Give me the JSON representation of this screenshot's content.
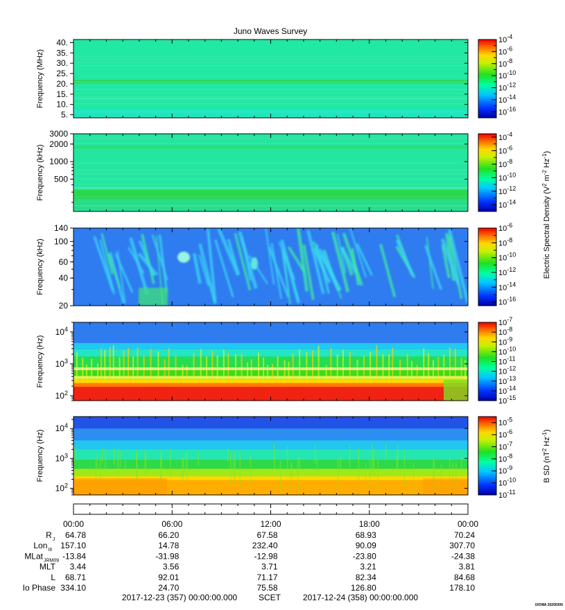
{
  "title": "Juno Waves Survey",
  "watermark": "UIOWA 20200306",
  "chart_data": [
    {
      "type": "heatmap",
      "ylabel": "Frequency (MHz)",
      "yscale": "linear",
      "ylim": [
        3.5,
        41.5
      ],
      "yticks": [
        {
          "v": 40,
          "label": "40."
        },
        {
          "v": 35,
          "label": "35."
        },
        {
          "v": 30,
          "label": "30."
        },
        {
          "v": 25,
          "label": "25."
        },
        {
          "v": 20,
          "label": "20."
        },
        {
          "v": 15,
          "label": "15."
        },
        {
          "v": 10,
          "label": "10."
        },
        {
          "v": 5,
          "label": "5."
        }
      ],
      "colorbar": {
        "min_exp": -17,
        "max_exp": -4,
        "ticks": [
          -4,
          -6,
          -8,
          -10,
          -12,
          -14,
          -16
        ]
      },
      "bands": [
        {
          "from": 3.5,
          "to": 41.5,
          "color": "#21e8a2"
        },
        {
          "from": 3.5,
          "to": 8,
          "color": "#1fe6bd"
        },
        {
          "from": 20.3,
          "to": 22.0,
          "color": "#2ad860"
        }
      ]
    },
    {
      "type": "heatmap",
      "ylabel": "Frequency (kHz)",
      "yscale": "log",
      "ylim": [
        140,
        3000
      ],
      "yticks": [
        {
          "v": 3000,
          "label": "3000"
        },
        {
          "v": 2000,
          "label": "2000"
        },
        {
          "v": 1000,
          "label": "1000"
        },
        {
          "v": 500,
          "label": "500"
        }
      ],
      "colorbar": {
        "min_exp": -15,
        "max_exp": -3.5,
        "ticks": [
          -4,
          -6,
          -8,
          -10,
          -12,
          -14
        ]
      },
      "bands": [
        {
          "from": 140,
          "to": 3000,
          "color": "#24e6a0"
        },
        {
          "from": 1700,
          "to": 1900,
          "color": "#2adf78"
        },
        {
          "from": 230,
          "to": 330,
          "color": "#2ad850"
        },
        {
          "from": 150,
          "to": 230,
          "color": "#28dc8a"
        }
      ]
    },
    {
      "type": "heatmap",
      "ylabel": "Frequency (kHz)",
      "yscale": "log",
      "ylim": [
        20,
        140
      ],
      "yticks": [
        {
          "v": 140,
          "label": "140"
        },
        {
          "v": 100,
          "label": "100"
        },
        {
          "v": 60,
          "label": "60"
        },
        {
          "v": 40,
          "label": "40"
        },
        {
          "v": 20,
          "label": "20"
        }
      ],
      "colorbar": {
        "min_exp": -16.5,
        "max_exp": -6,
        "ticks": [
          -6,
          -8,
          -10,
          -12,
          -14,
          -16
        ]
      },
      "bands": [
        {
          "from": 20,
          "to": 140,
          "color": "#2f7bf0"
        }
      ]
    },
    {
      "type": "heatmap",
      "ylabel": "Frequency (Hz)",
      "yscale": "log",
      "ylim": [
        70,
        20000
      ],
      "yticks": [
        {
          "v": 10000,
          "label": "10",
          "exp": "4"
        },
        {
          "v": 1000,
          "label": "10",
          "exp": "3"
        },
        {
          "v": 100,
          "label": "10",
          "exp": "2"
        }
      ],
      "colorbar": {
        "min_exp": -15,
        "max_exp": -7,
        "ticks": [
          -7,
          -8,
          -9,
          -10,
          -11,
          -12,
          -13,
          -14,
          -15
        ]
      },
      "bands": [
        {
          "from": 4500,
          "to": 20000,
          "color": "#2f7bf0"
        },
        {
          "from": 2800,
          "to": 4500,
          "color": "#22c8ef"
        },
        {
          "from": 1700,
          "to": 2800,
          "color": "#23e6c5"
        },
        {
          "from": 800,
          "to": 1700,
          "color": "#25dd55"
        },
        {
          "from": 420,
          "to": 800,
          "color": "#3bdc1c"
        },
        {
          "from": 330,
          "to": 420,
          "color": "#b6ee14"
        },
        {
          "from": 250,
          "to": 330,
          "color": "#ffd800"
        },
        {
          "from": 190,
          "to": 250,
          "color": "#ff7a00"
        },
        {
          "from": 70,
          "to": 190,
          "color": "#f22212"
        }
      ]
    },
    {
      "type": "heatmap",
      "ylabel": "Frequency (Hz)",
      "yscale": "log",
      "ylim": [
        60,
        25000
      ],
      "yticks": [
        {
          "v": 10000,
          "label": "10",
          "exp": "4"
        },
        {
          "v": 1000,
          "label": "10",
          "exp": "3"
        },
        {
          "v": 100,
          "label": "10",
          "exp": "2"
        }
      ],
      "colorbar": {
        "min_exp": -11,
        "max_exp": -4.5,
        "ticks": [
          -5,
          -6,
          -7,
          -8,
          -9,
          -10,
          -11
        ]
      },
      "bands": [
        {
          "from": 10000,
          "to": 25000,
          "color": "#2352e6"
        },
        {
          "from": 4000,
          "to": 10000,
          "color": "#2c8ef0"
        },
        {
          "from": 2000,
          "to": 4000,
          "color": "#22c6ee"
        },
        {
          "from": 900,
          "to": 2000,
          "color": "#25e6b0"
        },
        {
          "from": 450,
          "to": 900,
          "color": "#2ed94a"
        },
        {
          "from": 250,
          "to": 450,
          "color": "#9fe81a"
        },
        {
          "from": 190,
          "to": 250,
          "color": "#ffd800"
        },
        {
          "from": 60,
          "to": 190,
          "color": "#ffae00"
        }
      ]
    }
  ],
  "colorbar_labels": {
    "electric": "Electric Spectral Density (V",
    "electric_tail": " m",
    "electric_unit": "Hz",
    "magnetic": "B SD (nT",
    "magnetic_unit": "Hz"
  },
  "time_axis": {
    "ticks": [
      "00:00",
      "06:00",
      "12:00",
      "18:00",
      "00:00"
    ]
  },
  "ephemeris": {
    "rows": [
      {
        "label": "R",
        "sub": "J",
        "values": [
          "64.78",
          "66.20",
          "67.58",
          "68.93",
          "70.24"
        ]
      },
      {
        "label": "Lon",
        "sub": "III",
        "values": [
          "157.10",
          "14.78",
          "232.40",
          "90.09",
          "307.70"
        ]
      },
      {
        "label": "MLat",
        "sub": "JRM09",
        "values": [
          "-13.84",
          "-31.98",
          "-12.98",
          "-23.80",
          "-24.38"
        ]
      },
      {
        "label": "MLT",
        "sub": "",
        "values": [
          "3.44",
          "3.56",
          "3.71",
          "3.21",
          "3.81"
        ]
      },
      {
        "label": "L",
        "sub": "",
        "values": [
          "68.71",
          "92.01",
          "71.17",
          "82.34",
          "84.68"
        ]
      },
      {
        "label": "Io Phase",
        "sub": "",
        "values": [
          "334.10",
          "24.70",
          "75.58",
          "126.80",
          "178.10"
        ]
      }
    ]
  },
  "footer": {
    "start": "2017-12-23 (357) 00:00:00.000",
    "scet": "SCET",
    "end": "2017-12-24 (358) 00:00:00.000"
  }
}
